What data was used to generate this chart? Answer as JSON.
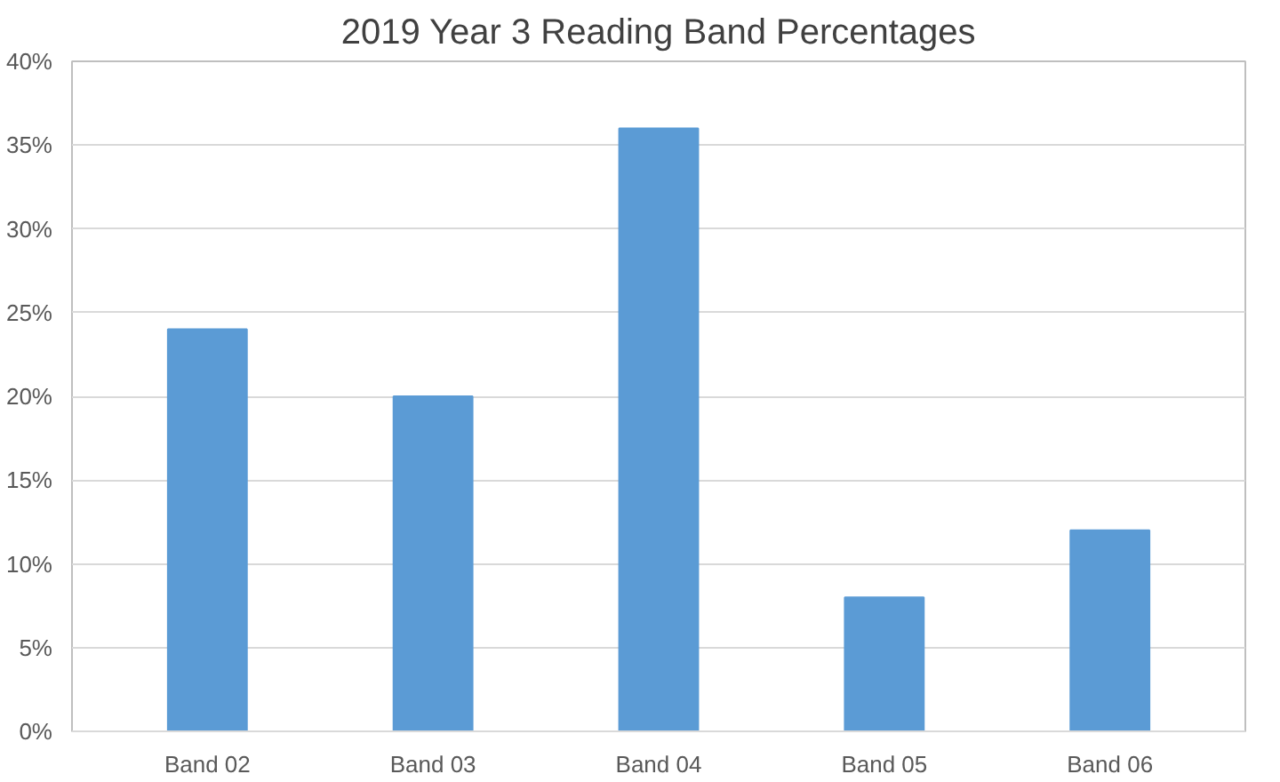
{
  "chart_data": {
    "type": "bar",
    "title": "2019 Year 3 Reading Band Percentages",
    "categories": [
      "Band 02",
      "Band 03",
      "Band 04",
      "Band 05",
      "Band 06"
    ],
    "values": [
      24,
      20,
      36,
      8,
      12
    ],
    "color": "#5b9bd5",
    "ylim": [
      0,
      40
    ],
    "yticks": [
      {
        "value": 0,
        "label": "0%"
      },
      {
        "value": 5,
        "label": "5%"
      },
      {
        "value": 10,
        "label": "10%"
      },
      {
        "value": 15,
        "label": "15%"
      },
      {
        "value": 20,
        "label": "20%"
      },
      {
        "value": 25,
        "label": "25%"
      },
      {
        "value": 30,
        "label": "30%"
      },
      {
        "value": 35,
        "label": "35%"
      },
      {
        "value": 40,
        "label": "40%"
      }
    ],
    "grid": "y"
  }
}
